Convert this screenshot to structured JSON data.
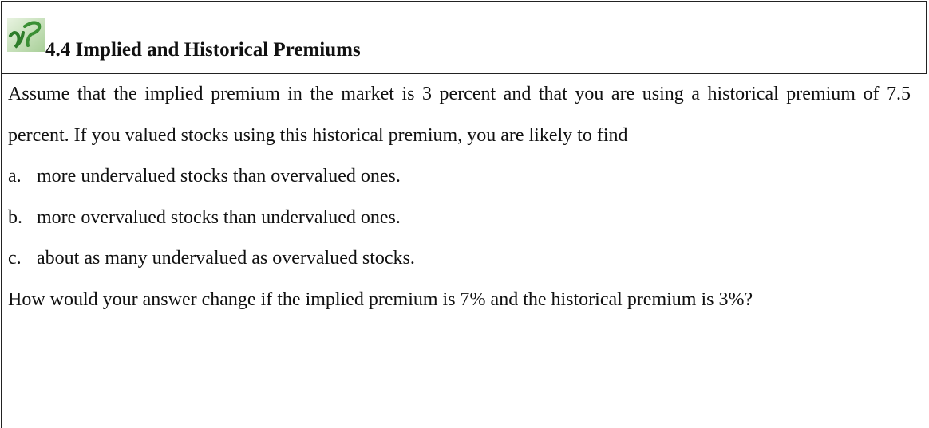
{
  "header": {
    "title": "4.4 Implied and Historical Premiums"
  },
  "question": "Assume that the implied premium in the market is 3 percent and that you are using a historical premium of 7.5 percent. If you valued stocks using this historical premium, you are likely to find",
  "options": [
    {
      "letter": "a.",
      "text": "more undervalued stocks than overvalued ones."
    },
    {
      "letter": "b.",
      "text": "more overvalued stocks than undervalued ones."
    },
    {
      "letter": "c.",
      "text": "about as many undervalued as overvalued stocks."
    }
  ],
  "followup": "How would your answer change if the implied premium is 7% and the historical premium is 3%?"
}
